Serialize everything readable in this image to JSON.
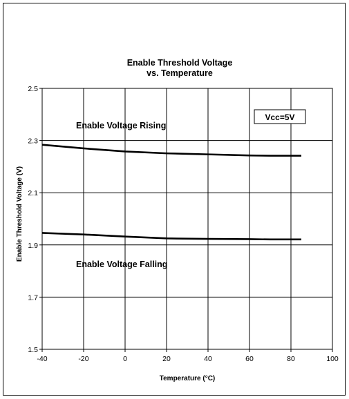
{
  "chart_data": {
    "type": "line",
    "title_line1": "Enable Threshold Voltage",
    "title_line2": "vs. Temperature",
    "xlabel": "Temperature (°C)",
    "ylabel": "Enable Threshold Voltage (V)",
    "xlim": [
      -40,
      100
    ],
    "ylim": [
      1.5,
      2.5
    ],
    "xticks": [
      -40,
      -20,
      0,
      20,
      40,
      60,
      80,
      100
    ],
    "yticks": [
      1.5,
      1.7,
      1.9,
      2.1,
      2.3,
      2.5
    ],
    "ytick_labels": [
      "1.5",
      "1.7",
      "1.9",
      "2.1",
      "2.3",
      "2.5"
    ],
    "grid": true,
    "series": [
      {
        "x": [
          -40,
          -20,
          0,
          20,
          40,
          60,
          70,
          85
        ],
        "values": [
          2.284,
          2.27,
          2.258,
          2.251,
          2.247,
          2.243,
          2.242,
          2.242
        ]
      },
      {
        "x": [
          -40,
          -20,
          0,
          20,
          40,
          60,
          70,
          85
        ],
        "values": [
          1.946,
          1.94,
          1.932,
          1.925,
          1.923,
          1.922,
          1.921,
          1.921
        ]
      }
    ],
    "annotations": {
      "rising": "Enable Voltage Rising",
      "falling": "Enable Voltage Falling",
      "condition": "Vcc=5V"
    }
  }
}
